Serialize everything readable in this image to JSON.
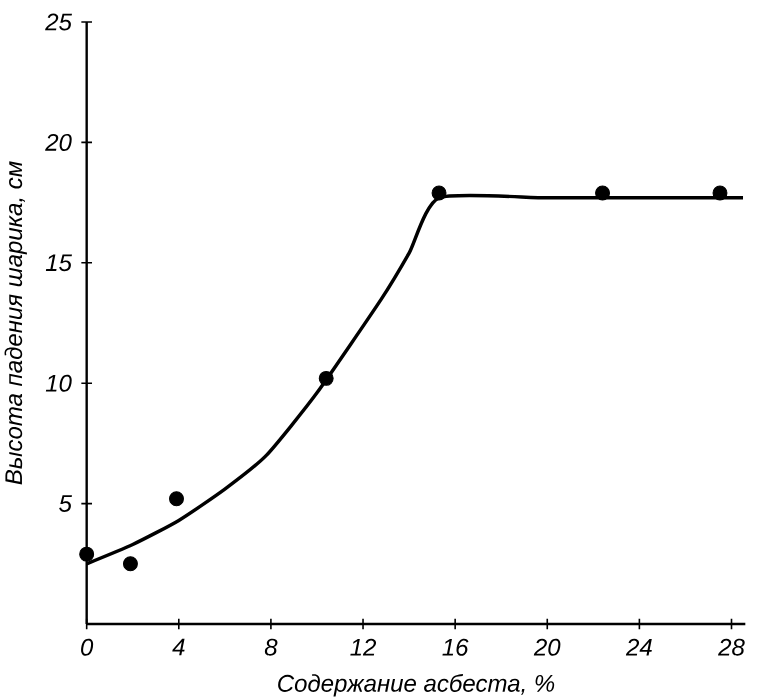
{
  "chart_data": {
    "type": "scatter",
    "xlabel": "Содержание асбеста, %",
    "ylabel": "Высота падения шарика, см",
    "xlim": [
      0,
      28.6
    ],
    "ylim": [
      0,
      25
    ],
    "xticks": [
      0,
      4,
      8,
      12,
      16,
      20,
      24,
      28
    ],
    "yticks": [
      5,
      10,
      15,
      20,
      25
    ],
    "grid": false,
    "series": [
      {
        "color": "#000000",
        "marker": "circle",
        "x": [
          0,
          1.9,
          3.9,
          10.4,
          15.3,
          22.4,
          27.5
        ],
        "values": [
          2.9,
          2.5,
          5.2,
          10.2,
          17.9,
          17.9,
          17.9
        ]
      },
      {
        "type": "line",
        "color": "#000000",
        "marker": "none",
        "line_style": "solid",
        "x": [
          0,
          2,
          4,
          6,
          7.8,
          10,
          12.8,
          14,
          15.3,
          20,
          24,
          28.5
        ],
        "values": [
          2.5,
          3.3,
          4.3,
          5.6,
          7.0,
          9.6,
          13.5,
          15.4,
          17.7,
          17.7,
          17.7,
          17.7
        ]
      }
    ]
  }
}
